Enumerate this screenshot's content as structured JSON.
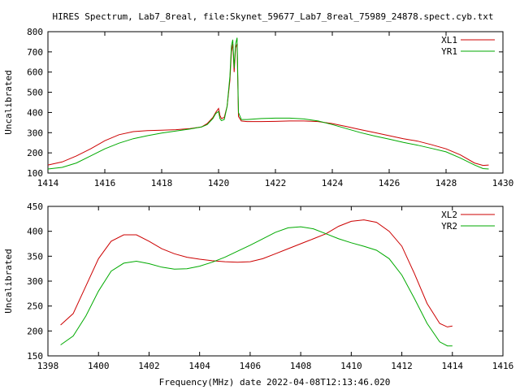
{
  "figure": {
    "title": "HIRES Spectrum, Lab7_8real, file:Skynet_59677_Lab7_8real_75989_24878.spect.cyb.txt",
    "xlabel": "Frequency(MHz) date 2022-04-08T12:13:46.020"
  },
  "chart_data": [
    {
      "type": "line",
      "ylabel": "Uncalibrated",
      "xlim": [
        1414,
        1430
      ],
      "ylim": [
        100,
        800
      ],
      "xticks": [
        1414,
        1416,
        1418,
        1420,
        1422,
        1424,
        1426,
        1428,
        1430
      ],
      "yticks": [
        100,
        200,
        300,
        400,
        500,
        600,
        700,
        800
      ],
      "legend_position": "top-right",
      "grid": false,
      "series": [
        {
          "name": "XL1",
          "color": "#cc0000",
          "points": [
            [
              1414.0,
              140
            ],
            [
              1414.5,
              155
            ],
            [
              1415.0,
              185
            ],
            [
              1415.5,
              220
            ],
            [
              1416.0,
              260
            ],
            [
              1416.5,
              290
            ],
            [
              1417.0,
              305
            ],
            [
              1417.5,
              310
            ],
            [
              1418.0,
              312
            ],
            [
              1418.5,
              315
            ],
            [
              1419.0,
              320
            ],
            [
              1419.4,
              328
            ],
            [
              1419.6,
              345
            ],
            [
              1419.8,
              375
            ],
            [
              1419.9,
              400
            ],
            [
              1420.0,
              420
            ],
            [
              1420.05,
              385
            ],
            [
              1420.1,
              370
            ],
            [
              1420.2,
              375
            ],
            [
              1420.3,
              430
            ],
            [
              1420.4,
              560
            ],
            [
              1420.45,
              700
            ],
            [
              1420.5,
              740
            ],
            [
              1420.55,
              600
            ],
            [
              1420.6,
              720
            ],
            [
              1420.65,
              740
            ],
            [
              1420.7,
              380
            ],
            [
              1420.8,
              358
            ],
            [
              1421.0,
              355
            ],
            [
              1421.5,
              355
            ],
            [
              1422.0,
              356
            ],
            [
              1422.5,
              358
            ],
            [
              1423.0,
              358
            ],
            [
              1423.5,
              355
            ],
            [
              1424.0,
              345
            ],
            [
              1424.5,
              330
            ],
            [
              1425.0,
              315
            ],
            [
              1425.5,
              300
            ],
            [
              1426.0,
              285
            ],
            [
              1426.5,
              270
            ],
            [
              1427.0,
              258
            ],
            [
              1427.5,
              240
            ],
            [
              1428.0,
              220
            ],
            [
              1428.5,
              190
            ],
            [
              1429.0,
              150
            ],
            [
              1429.3,
              138
            ],
            [
              1429.5,
              140
            ]
          ]
        },
        {
          "name": "YR1",
          "color": "#00aa00",
          "points": [
            [
              1414.0,
              120
            ],
            [
              1414.5,
              128
            ],
            [
              1415.0,
              150
            ],
            [
              1415.5,
              185
            ],
            [
              1416.0,
              220
            ],
            [
              1416.5,
              248
            ],
            [
              1417.0,
              270
            ],
            [
              1417.5,
              285
            ],
            [
              1418.0,
              298
            ],
            [
              1418.5,
              308
            ],
            [
              1419.0,
              318
            ],
            [
              1419.4,
              328
            ],
            [
              1419.6,
              340
            ],
            [
              1419.8,
              370
            ],
            [
              1419.9,
              395
            ],
            [
              1420.0,
              405
            ],
            [
              1420.05,
              370
            ],
            [
              1420.1,
              360
            ],
            [
              1420.2,
              365
            ],
            [
              1420.3,
              430
            ],
            [
              1420.4,
              580
            ],
            [
              1420.45,
              730
            ],
            [
              1420.5,
              760
            ],
            [
              1420.55,
              620
            ],
            [
              1420.6,
              740
            ],
            [
              1420.65,
              770
            ],
            [
              1420.7,
              400
            ],
            [
              1420.8,
              365
            ],
            [
              1421.0,
              365
            ],
            [
              1421.5,
              370
            ],
            [
              1422.0,
              372
            ],
            [
              1422.5,
              372
            ],
            [
              1423.0,
              368
            ],
            [
              1423.5,
              358
            ],
            [
              1424.0,
              340
            ],
            [
              1424.5,
              320
            ],
            [
              1425.0,
              300
            ],
            [
              1425.5,
              283
            ],
            [
              1426.0,
              268
            ],
            [
              1426.5,
              252
            ],
            [
              1427.0,
              238
            ],
            [
              1427.5,
              222
            ],
            [
              1428.0,
              205
            ],
            [
              1428.5,
              175
            ],
            [
              1429.0,
              140
            ],
            [
              1429.3,
              122
            ],
            [
              1429.5,
              120
            ]
          ]
        }
      ]
    },
    {
      "type": "line",
      "ylabel": "Uncalibrated",
      "xlim": [
        1398,
        1416
      ],
      "ylim": [
        150,
        450
      ],
      "xticks": [
        1398,
        1400,
        1402,
        1404,
        1406,
        1408,
        1410,
        1412,
        1414,
        1416
      ],
      "yticks": [
        150,
        200,
        250,
        300,
        350,
        400,
        450
      ],
      "legend_position": "top-right",
      "grid": false,
      "series": [
        {
          "name": "XL2",
          "color": "#cc0000",
          "points": [
            [
              1398.5,
              212
            ],
            [
              1399.0,
              235
            ],
            [
              1399.5,
              290
            ],
            [
              1400.0,
              345
            ],
            [
              1400.5,
              380
            ],
            [
              1401.0,
              393
            ],
            [
              1401.5,
              393
            ],
            [
              1402.0,
              380
            ],
            [
              1402.5,
              365
            ],
            [
              1403.0,
              355
            ],
            [
              1403.5,
              348
            ],
            [
              1404.0,
              344
            ],
            [
              1404.5,
              341
            ],
            [
              1405.0,
              339
            ],
            [
              1405.5,
              338
            ],
            [
              1406.0,
              339
            ],
            [
              1406.5,
              345
            ],
            [
              1407.0,
              355
            ],
            [
              1407.5,
              365
            ],
            [
              1408.0,
              375
            ],
            [
              1408.5,
              385
            ],
            [
              1409.0,
              395
            ],
            [
              1409.5,
              410
            ],
            [
              1410.0,
              420
            ],
            [
              1410.5,
              423
            ],
            [
              1411.0,
              418
            ],
            [
              1411.5,
              400
            ],
            [
              1412.0,
              370
            ],
            [
              1412.5,
              315
            ],
            [
              1413.0,
              255
            ],
            [
              1413.5,
              215
            ],
            [
              1413.8,
              208
            ],
            [
              1414.0,
              210
            ]
          ]
        },
        {
          "name": "YR2",
          "color": "#00aa00",
          "points": [
            [
              1398.5,
              172
            ],
            [
              1399.0,
              190
            ],
            [
              1399.5,
              230
            ],
            [
              1400.0,
              280
            ],
            [
              1400.5,
              320
            ],
            [
              1401.0,
              336
            ],
            [
              1401.5,
              340
            ],
            [
              1402.0,
              335
            ],
            [
              1402.5,
              328
            ],
            [
              1403.0,
              324
            ],
            [
              1403.5,
              325
            ],
            [
              1404.0,
              330
            ],
            [
              1404.5,
              338
            ],
            [
              1405.0,
              348
            ],
            [
              1405.5,
              360
            ],
            [
              1406.0,
              372
            ],
            [
              1406.5,
              385
            ],
            [
              1407.0,
              398
            ],
            [
              1407.5,
              407
            ],
            [
              1408.0,
              409
            ],
            [
              1408.5,
              405
            ],
            [
              1409.0,
              395
            ],
            [
              1409.5,
              385
            ],
            [
              1410.0,
              377
            ],
            [
              1410.5,
              370
            ],
            [
              1411.0,
              362
            ],
            [
              1411.5,
              345
            ],
            [
              1412.0,
              312
            ],
            [
              1412.5,
              265
            ],
            [
              1413.0,
              215
            ],
            [
              1413.5,
              178
            ],
            [
              1413.8,
              170
            ],
            [
              1414.0,
              170
            ]
          ]
        }
      ]
    }
  ]
}
